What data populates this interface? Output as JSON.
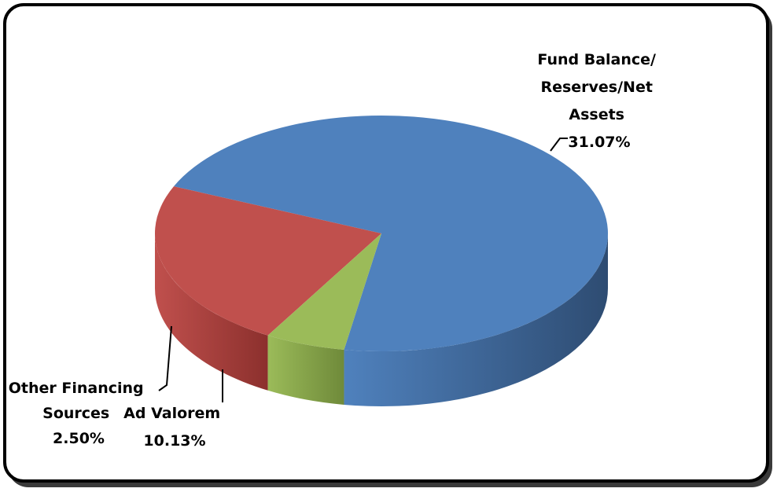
{
  "chart_data": {
    "type": "pie",
    "style": "3d",
    "legend": "none",
    "slices": [
      {
        "label": "Fund Balance/ Reserves/Net Assets",
        "label_lines": [
          "Fund Balance/",
          "Reserves/Net",
          "Assets"
        ],
        "value": 31.07,
        "value_text": "31.07%",
        "color": "#4F81BD",
        "side_color": "#2E4C72"
      },
      {
        "label": "Ad Valorem",
        "label_lines": [
          "Ad Valorem"
        ],
        "value": 10.13,
        "value_text": "10.13%",
        "color": "#C0504D",
        "side_color": "#8C302D"
      },
      {
        "label": "Other Financing Sources",
        "label_lines": [
          "Other Financing",
          "Sources"
        ],
        "value": 2.5,
        "value_text": "2.50%",
        "color": "#9BBB59",
        "side_color": "#6F8A3A"
      }
    ]
  }
}
